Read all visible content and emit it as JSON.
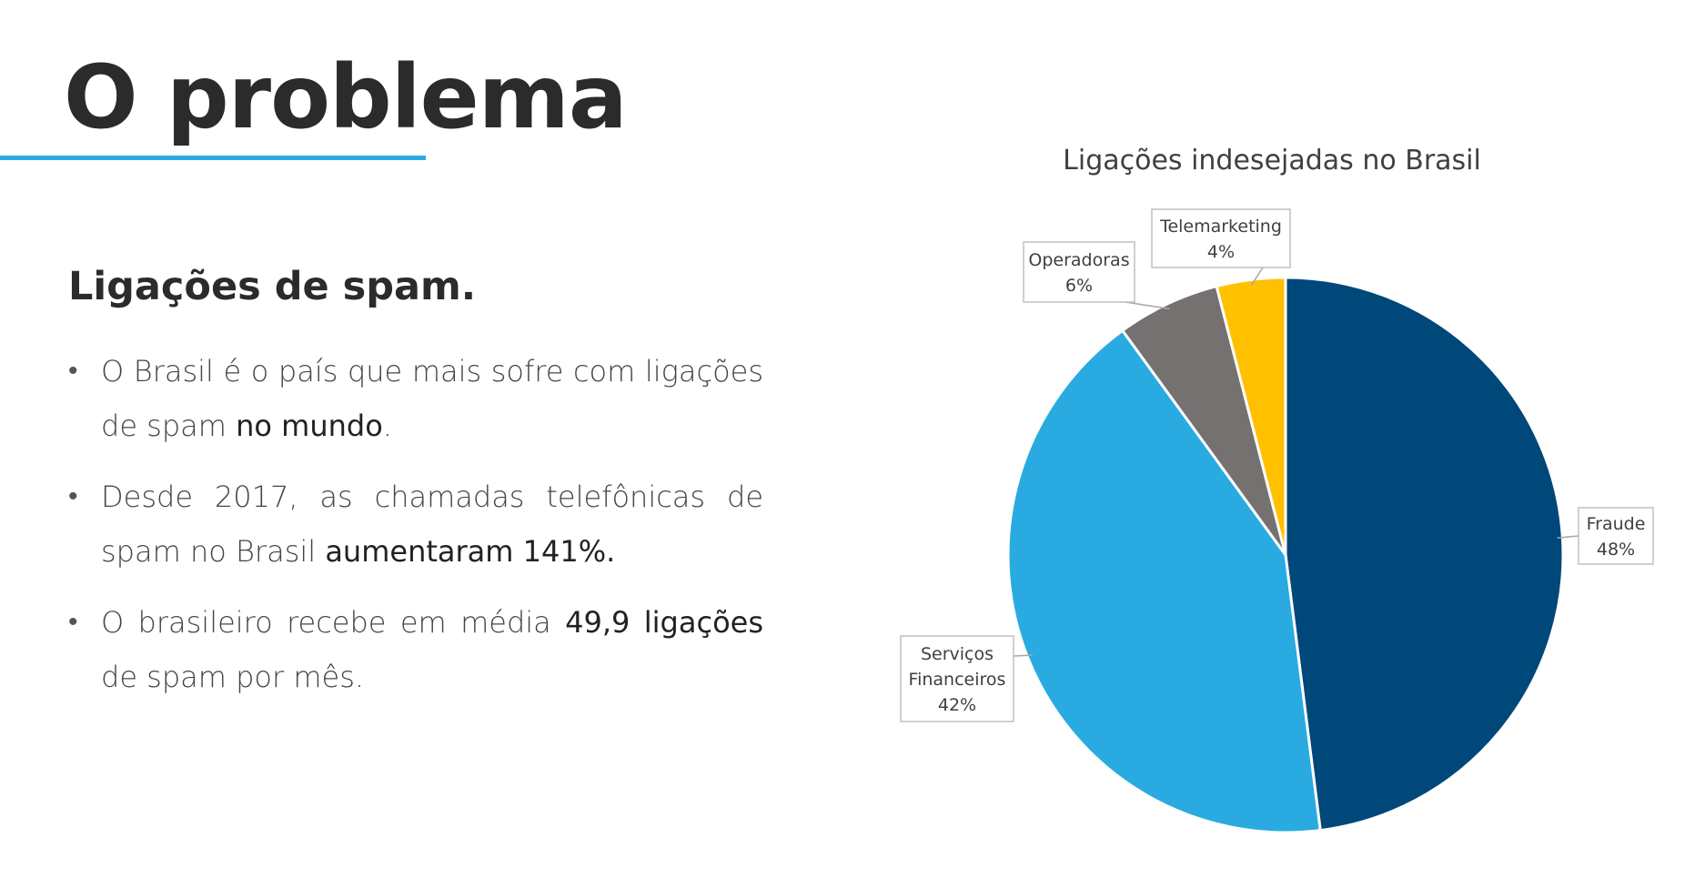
{
  "slide": {
    "title": "O problema",
    "subheading": "Ligações de spam.",
    "bullets": [
      {
        "text1": "O Brasil é o país que mais sofre com ligações de spam ",
        "bold": "no mundo",
        "text2": "."
      },
      {
        "text1": "Desde 2017, as chamadas telefônicas de spam no Brasil ",
        "bold": "aumentaram 141%.",
        "text2": ""
      },
      {
        "text1": "O brasileiro recebe em média ",
        "bold": "49,9 ligações",
        "text2": " de spam por mês."
      }
    ]
  },
  "colors": {
    "accent": "#29abe2",
    "fraude": "#00477a",
    "servicos": "#29abe2",
    "operadoras": "#767171",
    "telemarketing": "#ffc000"
  },
  "chart_data": {
    "type": "pie",
    "title": "Ligações indesejadas no Brasil",
    "slices": [
      {
        "name": "Fraude",
        "value": 48,
        "label": "48%"
      },
      {
        "name": "Serviços Financeiros",
        "value": 42,
        "label": "42%"
      },
      {
        "name": "Operadoras",
        "value": 6,
        "label": "6%"
      },
      {
        "name": "Telemarketing",
        "value": 4,
        "label": "4%"
      }
    ],
    "start_angle": "12 o'clock, clockwise",
    "legend": "none",
    "data_labels": "callouts outside the pie"
  }
}
